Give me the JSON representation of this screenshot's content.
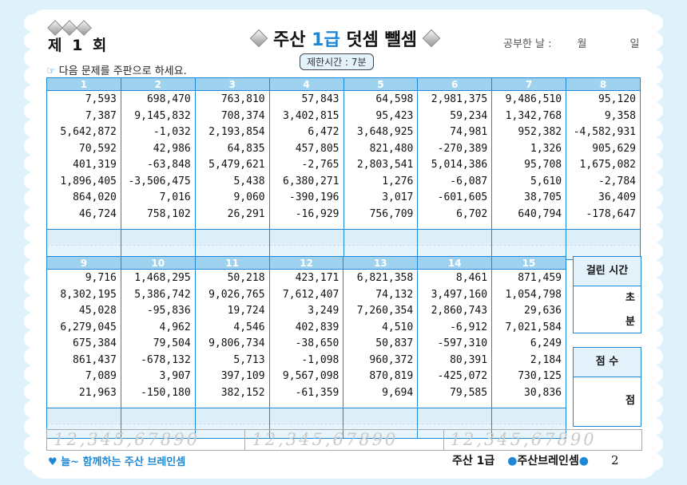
{
  "header": {
    "round": "제 1 회",
    "title_pre": "주산 ",
    "title_level": "1급",
    "title_post": " 덧셈 뺄셈",
    "date_label": "공부한 날 :",
    "month_label": "월",
    "day_label": "일",
    "time_limit": "제한시간 : 7분"
  },
  "instruction": "다음 문제를 주판으로 하세요.",
  "problems_top": [
    {
      "no": "1",
      "values": [
        "7,593",
        "7,387",
        "5,642,872",
        "70,592",
        "401,319",
        "1,896,405",
        "864,020",
        "46,724"
      ]
    },
    {
      "no": "2",
      "values": [
        "698,470",
        "9,145,832",
        "-1,032",
        "42,986",
        "-63,848",
        "-3,506,475",
        "7,016",
        "758,102"
      ]
    },
    {
      "no": "3",
      "values": [
        "763,810",
        "708,374",
        "2,193,854",
        "64,835",
        "5,479,621",
        "5,438",
        "9,060",
        "26,291"
      ]
    },
    {
      "no": "4",
      "values": [
        "57,843",
        "3,402,815",
        "6,472",
        "457,805",
        "-2,765",
        "6,380,271",
        "-390,196",
        "-16,929"
      ]
    },
    {
      "no": "5",
      "values": [
        "64,598",
        "95,423",
        "3,648,925",
        "821,480",
        "2,803,541",
        "1,276",
        "3,017",
        "756,709"
      ]
    },
    {
      "no": "6",
      "values": [
        "2,981,375",
        "59,234",
        "74,981",
        "-270,389",
        "5,014,386",
        "-6,087",
        "-601,605",
        "6,702"
      ]
    },
    {
      "no": "7",
      "values": [
        "9,486,510",
        "1,342,768",
        "952,382",
        "1,326",
        "95,708",
        "5,610",
        "38,705",
        "640,794"
      ]
    },
    {
      "no": "8",
      "values": [
        "95,120",
        "9,358",
        "-4,582,931",
        "905,629",
        "1,675,082",
        "-2,784",
        "36,409",
        "-178,647"
      ]
    }
  ],
  "problems_bottom": [
    {
      "no": "9",
      "values": [
        "9,716",
        "8,302,195",
        "45,028",
        "6,279,045",
        "675,384",
        "861,437",
        "7,089",
        "21,963"
      ]
    },
    {
      "no": "10",
      "values": [
        "1,468,295",
        "5,386,742",
        "-95,836",
        "4,962",
        "79,504",
        "-678,132",
        "3,907",
        "-150,180"
      ]
    },
    {
      "no": "11",
      "values": [
        "50,218",
        "9,026,765",
        "19,724",
        "4,546",
        "9,806,734",
        "5,713",
        "397,109",
        "382,152"
      ]
    },
    {
      "no": "12",
      "values": [
        "423,171",
        "7,612,407",
        "3,249",
        "402,839",
        "-38,650",
        "-1,098",
        "9,567,098",
        "-61,359"
      ]
    },
    {
      "no": "13",
      "values": [
        "6,821,358",
        "74,132",
        "7,260,354",
        "4,510",
        "50,837",
        "960,372",
        "870,819",
        "9,694"
      ]
    },
    {
      "no": "14",
      "values": [
        "8,461",
        "3,497,160",
        "2,860,743",
        "-6,912",
        "-597,310",
        "80,391",
        "-425,072",
        "79,585"
      ]
    },
    {
      "no": "15",
      "values": [
        "871,459",
        "1,054,798",
        "29,636",
        "7,021,584",
        "6,249",
        "2,184",
        "730,125",
        "30,836"
      ]
    }
  ],
  "side": {
    "time_title": "걸린 시간",
    "seconds": "초",
    "minutes": "분",
    "score_title": "점 수",
    "points": "점"
  },
  "trace_digits": [
    "12,345,67890",
    "12,345,67890",
    "12,345,67890"
  ],
  "footer": {
    "slogan": "♥ 늘~ 함께하는 주산 브레인셈",
    "level": "주산 1급",
    "brand": "주산브레인셈",
    "page": "2"
  },
  "colors": {
    "accent": "#1e88d6",
    "header_fill": "#9fd2ee",
    "background": "#dff2fb"
  }
}
